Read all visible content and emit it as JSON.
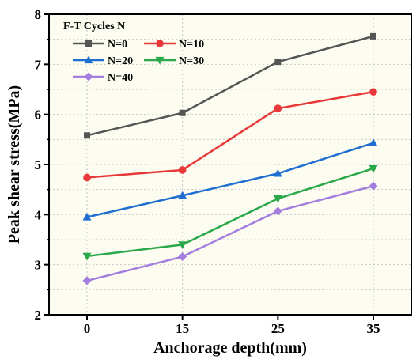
{
  "chart_data": {
    "type": "line",
    "x": [
      "0",
      "15",
      "25",
      "35"
    ],
    "xlabel": "Anchorage depth(mm)",
    "ylabel": "Peak shear stress(MPa)",
    "ylim": [
      2,
      8
    ],
    "yticks": [
      "2",
      "3",
      "4",
      "5",
      "6",
      "7",
      "8"
    ],
    "grid": true,
    "background": "#fcfcf0",
    "legend": {
      "title": "F-T Cycles N",
      "placement": "top-left",
      "columns": 2
    },
    "series": [
      {
        "name": "N=0",
        "values": [
          5.58,
          6.03,
          7.05,
          7.56
        ],
        "color": "#555555",
        "marker": "square"
      },
      {
        "name": "N=10",
        "values": [
          4.74,
          4.89,
          6.12,
          6.45
        ],
        "color": "#e8383a",
        "marker": "circle"
      },
      {
        "name": "N=20",
        "values": [
          3.95,
          4.38,
          4.82,
          5.43
        ],
        "color": "#1f6fd1",
        "marker": "triangle-up"
      },
      {
        "name": "N=30",
        "values": [
          3.17,
          3.4,
          4.32,
          4.92
        ],
        "color": "#2aa84a",
        "marker": "triangle-down"
      },
      {
        "name": "N=40",
        "values": [
          2.68,
          3.16,
          4.07,
          4.57
        ],
        "color": "#a47ede",
        "marker": "diamond"
      }
    ]
  }
}
